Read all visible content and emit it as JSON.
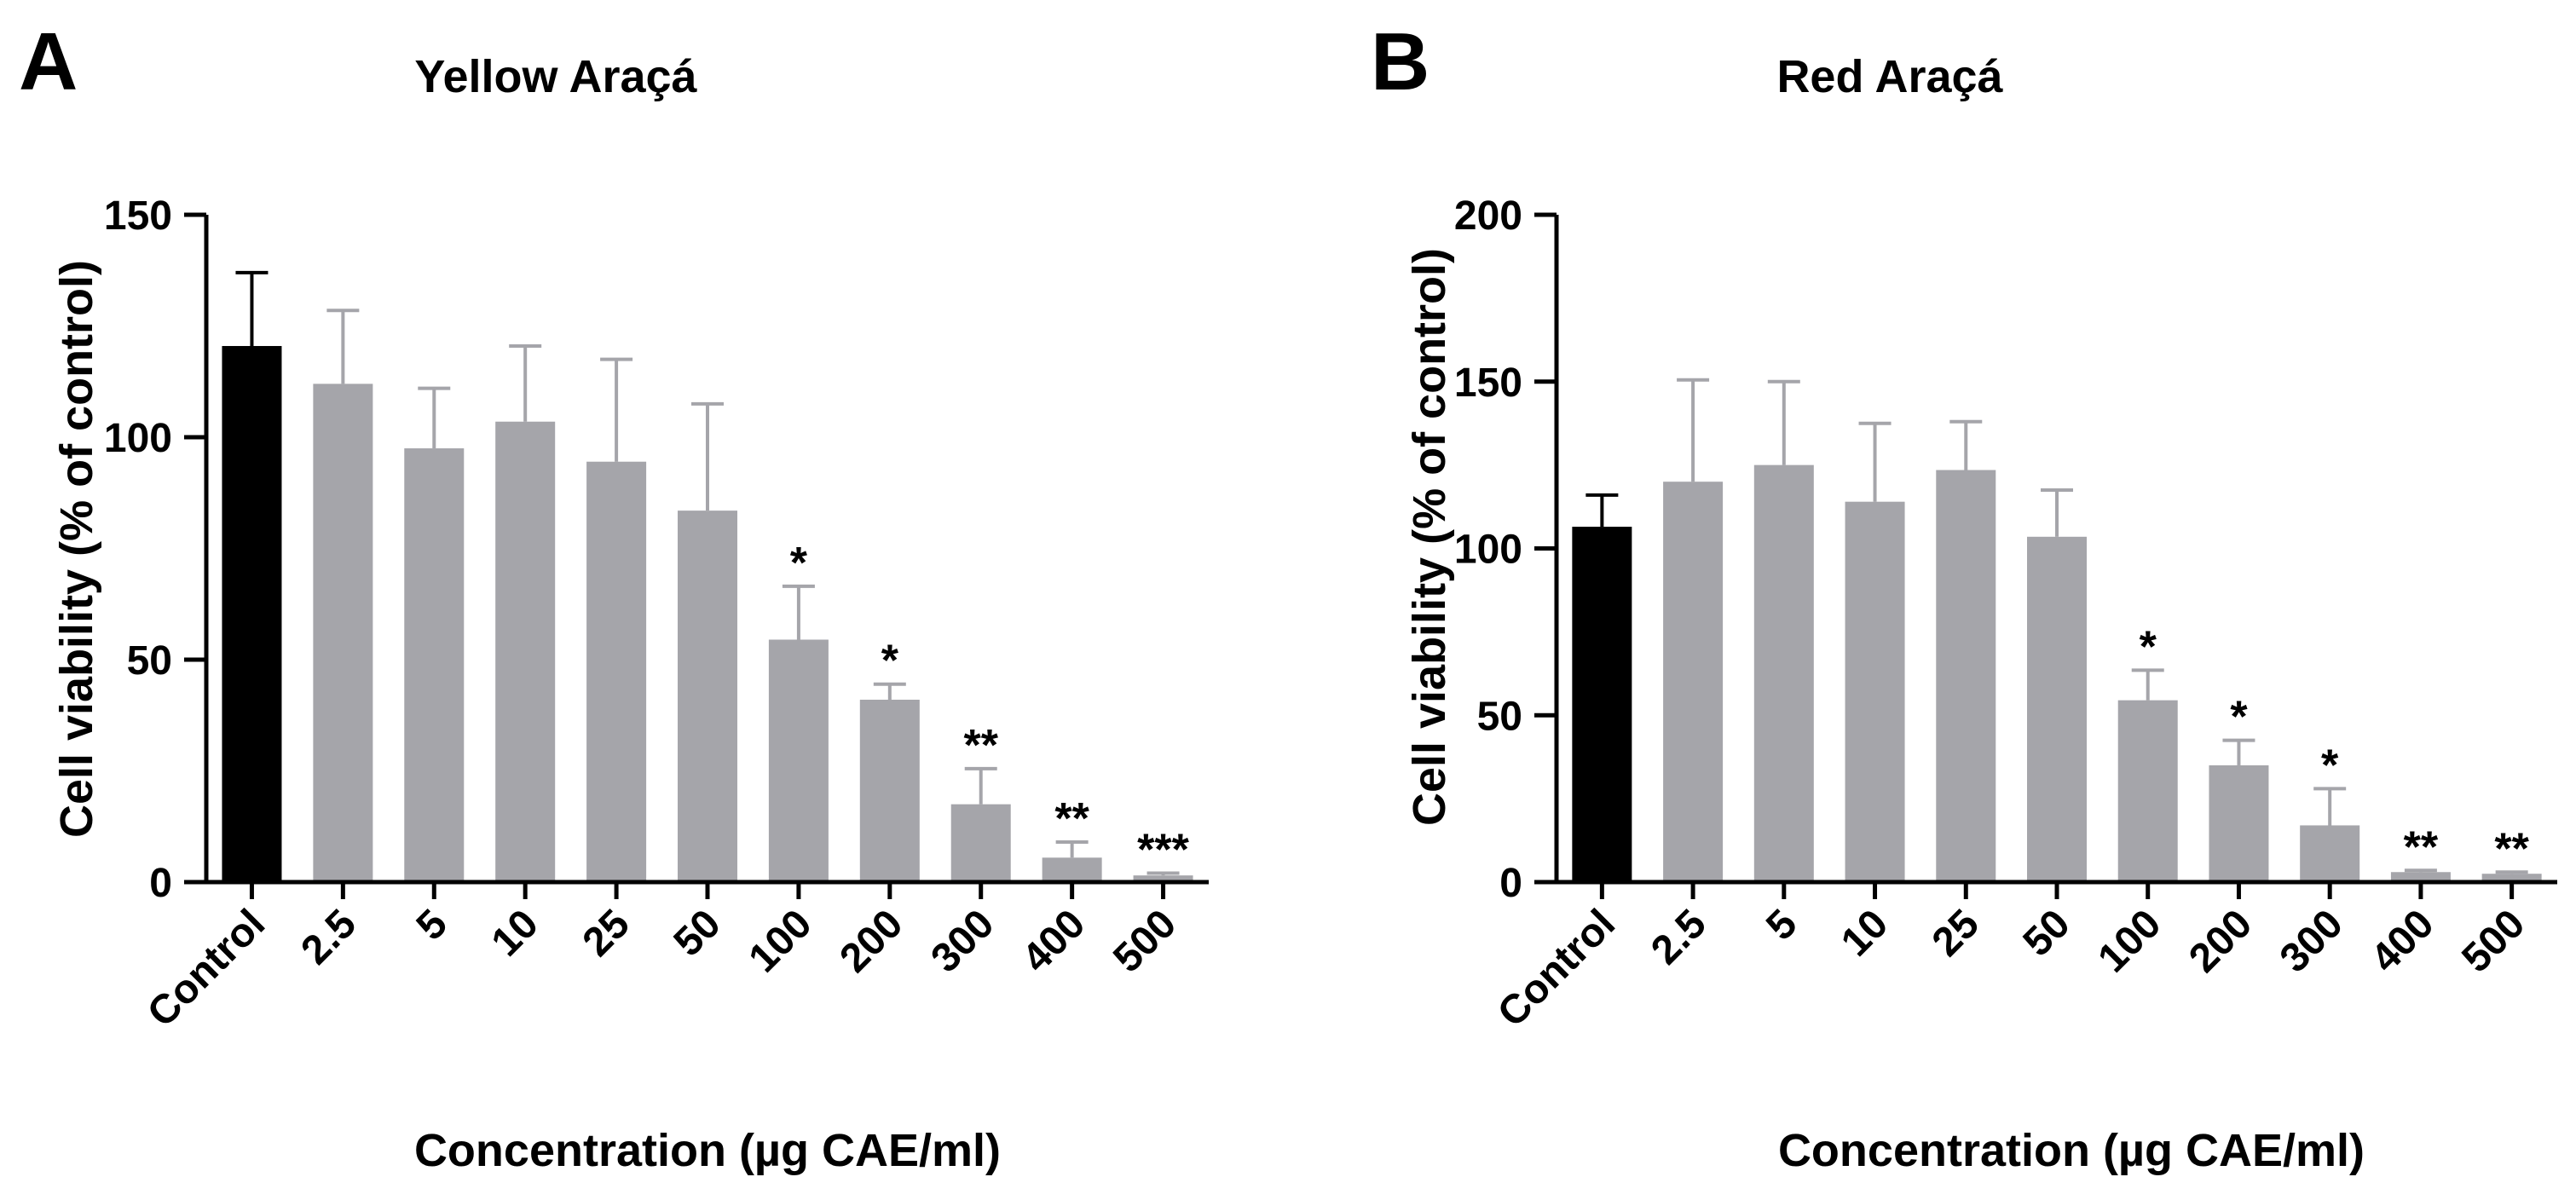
{
  "panels": [
    {
      "letter": "A",
      "chart_data": {
        "type": "bar",
        "title": "Yellow Araçá",
        "xlabel": "Concentration (µg CAE/ml)",
        "ylabel": "Cell viability (% of control)",
        "ylim": [
          0,
          150
        ],
        "yticks": [
          0,
          50,
          100,
          150
        ],
        "categories": [
          "Control",
          "2.5",
          "5",
          "10",
          "25",
          "50",
          "100",
          "200",
          "300",
          "400",
          "500"
        ],
        "values": [
          120.5,
          112,
          97.5,
          103.5,
          94.5,
          83.5,
          54.5,
          41,
          17.5,
          5.5,
          1.5
        ],
        "errors": [
          16.5,
          16.5,
          13.5,
          17,
          23,
          24,
          12,
          3.5,
          8,
          3.5,
          0.5
        ],
        "annotations": [
          "",
          "",
          "",
          "",
          "",
          "",
          "*",
          "*",
          "**",
          "**",
          "***"
        ],
        "bar_colors": [
          "#000000",
          "#a5a5aa",
          "#a5a5aa",
          "#a5a5aa",
          "#a5a5aa",
          "#a5a5aa",
          "#a5a5aa",
          "#a5a5aa",
          "#a5a5aa",
          "#a5a5aa",
          "#a5a5aa"
        ]
      }
    },
    {
      "letter": "B",
      "chart_data": {
        "type": "bar",
        "title": "Red Araçá",
        "xlabel": "Concentration (µg CAE/ml)",
        "ylabel": "Cell viability (% of control)",
        "ylim": [
          0,
          200
        ],
        "yticks": [
          0,
          50,
          100,
          150,
          200
        ],
        "categories": [
          "Control",
          "2.5",
          "5",
          "10",
          "25",
          "50",
          "100",
          "200",
          "300",
          "400",
          "500"
        ],
        "values": [
          106.5,
          120,
          125,
          114,
          123.5,
          103.5,
          54.5,
          35,
          17,
          3,
          2.5
        ],
        "errors": [
          9.5,
          30.5,
          25,
          23.5,
          14.5,
          14,
          9,
          7.5,
          11,
          0.5,
          0.5
        ],
        "annotations": [
          "",
          "",
          "",
          "",
          "",
          "",
          "*",
          "*",
          "*",
          "**",
          "**"
        ],
        "bar_colors": [
          "#000000",
          "#a5a5aa",
          "#a5a5aa",
          "#a5a5aa",
          "#a5a5aa",
          "#a5a5aa",
          "#a5a5aa",
          "#a5a5aa",
          "#a5a5aa",
          "#a5a5aa",
          "#a5a5aa"
        ]
      }
    }
  ]
}
